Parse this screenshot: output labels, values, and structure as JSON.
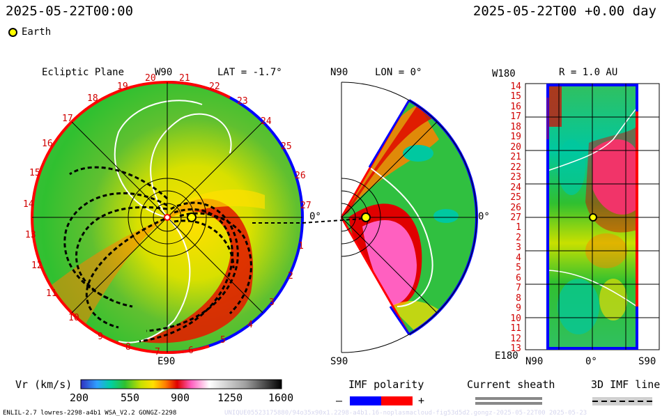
{
  "header": {
    "left_time": "2025-05-22T00:00",
    "right_time": "2025-05-22T00 +0.00 day"
  },
  "legend": {
    "earth_label": "Earth",
    "earth_color": "#ffff00"
  },
  "panel_ecliptic": {
    "title": "Ecliptic Plane",
    "top_label": "W90",
    "bottom_label": "E90",
    "lat_label": "LAT = -1.7°",
    "right_label": "0°",
    "rim_ticks": [
      "19",
      "20",
      "21",
      "22",
      "23",
      "24",
      "25",
      "26",
      "27",
      "1",
      "2",
      "3",
      "4",
      "5",
      "6",
      "7",
      "8",
      "9",
      "10",
      "11",
      "12",
      "13",
      "14",
      "15",
      "16",
      "17",
      "18"
    ]
  },
  "panel_meridional": {
    "top_label": "N90",
    "bottom_label": "S90",
    "lon_label": "LON = 0°",
    "right_label": "0°"
  },
  "panel_r": {
    "title": "R = 1.0 AU",
    "top_left_label": "W180",
    "bottom_left_label": "E180",
    "x_labels": [
      "N90",
      "0°",
      "S90"
    ],
    "y_ticks": [
      "14",
      "15",
      "16",
      "17",
      "18",
      "19",
      "20",
      "21",
      "22",
      "23",
      "24",
      "25",
      "26",
      "27",
      "1",
      "2",
      "3",
      "4",
      "5",
      "6",
      "7",
      "8",
      "9",
      "10",
      "11",
      "12",
      "13"
    ]
  },
  "colorbar": {
    "label": "Vr (km/s)",
    "ticks": [
      "200",
      "550",
      "900",
      "1250",
      "1600"
    ],
    "min": 200,
    "max": 1600,
    "stops": [
      "#3030c0",
      "#2fa0ff",
      "#00d0a0",
      "#30c030",
      "#c8e000",
      "#ffe000",
      "#ff8000",
      "#e00000",
      "#ff60c0",
      "#ffffff",
      "#a0a0a0",
      "#000000"
    ]
  },
  "imf_polarity": {
    "label": "IMF polarity",
    "minus": "–",
    "plus": "+",
    "neg_color": "#0000ff",
    "pos_color": "#ff0000"
  },
  "current_sheath": {
    "label": "Current sheath"
  },
  "imf_line": {
    "label": "3D IMF line"
  },
  "footer": {
    "left": "ENLIL-2.7 lowres-2298-a4b1 WSA_V2.2 GONGZ-2298",
    "watermark": "UNIQUE05523175880/94o35x90x1.2298-a4b1.16-noplasmacloud-fig53d5d2.gongz-2025-05-22T00   2025-05-23"
  },
  "chart_data": [
    {
      "type": "heatmap",
      "name": "ecliptic-plane",
      "values_description": "radial solar wind speed Vr in km/s, polar view",
      "range": [
        200,
        1600
      ]
    },
    {
      "type": "heatmap",
      "name": "meridional-plane",
      "values_description": "radial solar wind speed Vr in km/s",
      "range": [
        200,
        1600
      ]
    },
    {
      "type": "heatmap",
      "name": "r-1au-map",
      "values_description": "radial solar wind speed Vr in km/s at R = 1.0 AU",
      "range": [
        200,
        1600
      ]
    }
  ]
}
